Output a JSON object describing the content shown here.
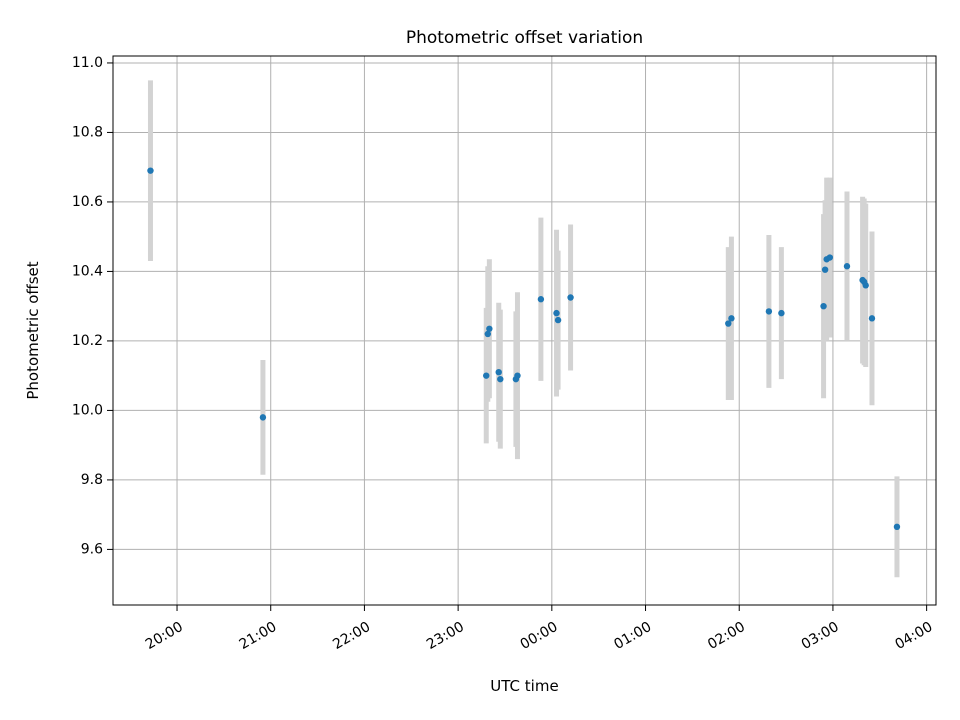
{
  "chart_data": {
    "type": "scatter",
    "title": "Photometric offset variation",
    "xlabel": "UTC time",
    "ylabel": "Photometric offset",
    "x_ticks": [
      "20:00",
      "21:00",
      "22:00",
      "23:00",
      "00:00",
      "01:00",
      "02:00",
      "03:00",
      "04:00"
    ],
    "x_range": [
      "19:19",
      "04:06"
    ],
    "ylim": [
      9.44,
      11.02
    ],
    "y_ticks": [
      "9.6",
      "9.8",
      "10.0",
      "10.2",
      "10.4",
      "10.6",
      "10.8",
      "11.0"
    ],
    "grid": true,
    "colors": {
      "point": "#1f77b4",
      "errorbar": "#d3d3d3",
      "grid": "#b0b0b0"
    },
    "points": [
      {
        "t": "19:43",
        "y": 10.69,
        "err": 0.26
      },
      {
        "t": "20:55",
        "y": 9.98,
        "err": 0.165
      },
      {
        "t": "23:18",
        "y": 10.1,
        "err": 0.195
      },
      {
        "t": "23:19",
        "y": 10.22,
        "err": 0.195
      },
      {
        "t": "23:20",
        "y": 10.235,
        "err": 0.2
      },
      {
        "t": "23:26",
        "y": 10.11,
        "err": 0.2
      },
      {
        "t": "23:27",
        "y": 10.09,
        "err": 0.2
      },
      {
        "t": "23:37",
        "y": 10.09,
        "err": 0.195
      },
      {
        "t": "23:38",
        "y": 10.1,
        "err": 0.24
      },
      {
        "t": "23:53",
        "y": 10.32,
        "err": 0.235
      },
      {
        "t": "00:03",
        "y": 10.28,
        "err": 0.24
      },
      {
        "t": "00:04",
        "y": 10.26,
        "err": 0.2
      },
      {
        "t": "00:12",
        "y": 10.325,
        "err": 0.21
      },
      {
        "t": "01:53",
        "y": 10.25,
        "err": 0.22
      },
      {
        "t": "01:55",
        "y": 10.265,
        "err": 0.235
      },
      {
        "t": "02:19",
        "y": 10.285,
        "err": 0.22
      },
      {
        "t": "02:27",
        "y": 10.28,
        "err": 0.19
      },
      {
        "t": "02:54",
        "y": 10.3,
        "err": 0.265
      },
      {
        "t": "02:55",
        "y": 10.405,
        "err": 0.2
      },
      {
        "t": "02:56",
        "y": 10.435,
        "err": 0.235
      },
      {
        "t": "02:58",
        "y": 10.44,
        "err": 0.23
      },
      {
        "t": "03:09",
        "y": 10.415,
        "err": 0.215
      },
      {
        "t": "03:19",
        "y": 10.375,
        "err": 0.24
      },
      {
        "t": "03:20",
        "y": 10.37,
        "err": 0.24
      },
      {
        "t": "03:21",
        "y": 10.36,
        "err": 0.235
      },
      {
        "t": "03:25",
        "y": 10.265,
        "err": 0.25
      },
      {
        "t": "03:41",
        "y": 9.665,
        "err": 0.145
      }
    ]
  }
}
